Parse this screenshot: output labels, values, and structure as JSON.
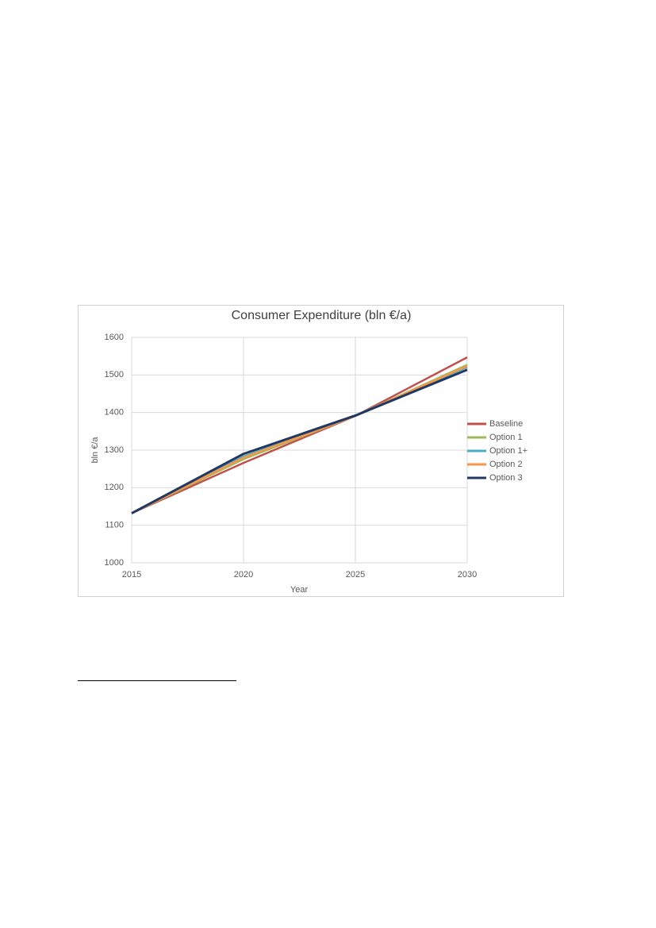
{
  "chart_data": {
    "type": "line",
    "title": "Consumer Expenditure (bln €/a)",
    "x_label": "Year",
    "y_label": "bln €/a",
    "x": [
      2015,
      2020,
      2025,
      2030
    ],
    "series": [
      {
        "name": "Baseline",
        "color": "#c0504d",
        "values": [
          1132,
          1266,
          1391,
          1547
        ]
      },
      {
        "name": "Option 1",
        "color": "#9bbb59",
        "values": [
          1132,
          1276,
          1391,
          1527
        ]
      },
      {
        "name": "Option 1+",
        "color": "#4bacc6",
        "values": [
          1132,
          1283,
          1392,
          1521
        ]
      },
      {
        "name": "Option 2",
        "color": "#f79646",
        "values": [
          1132,
          1280,
          1391,
          1524
        ]
      },
      {
        "name": "Option 3",
        "color": "#1f3864",
        "values": [
          1132,
          1290,
          1392,
          1514
        ]
      }
    ],
    "xlim": [
      2015,
      2030
    ],
    "xticks": [
      2015,
      2020,
      2025,
      2030
    ],
    "ylim": [
      1000,
      1600
    ],
    "yticks": [
      1000,
      1100,
      1200,
      1300,
      1400,
      1500,
      1600
    ],
    "grid": true,
    "legend": "right"
  }
}
